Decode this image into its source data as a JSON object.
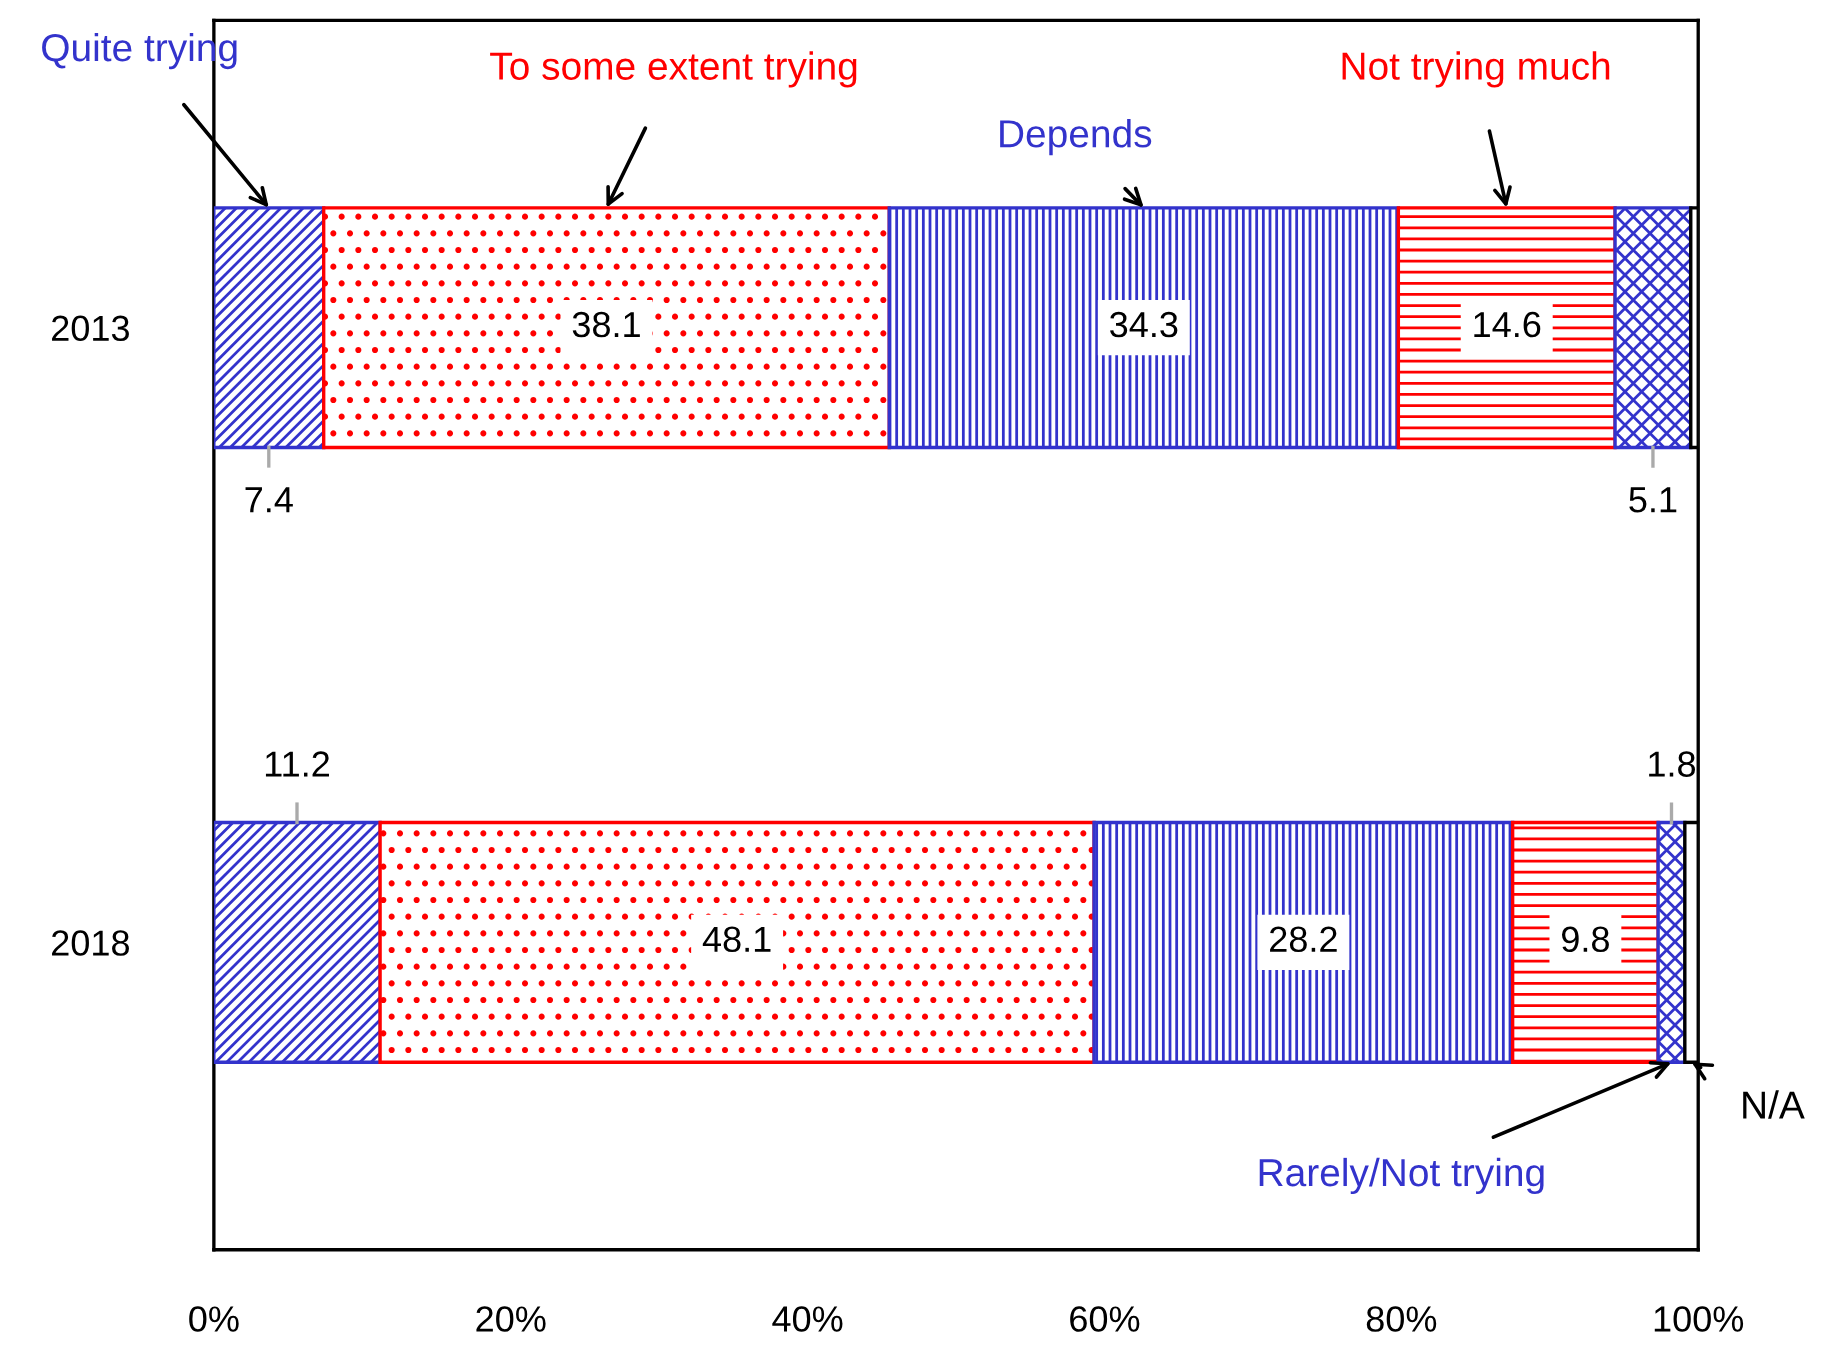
{
  "chart_data": {
    "type": "bar",
    "orientation": "horizontal",
    "stacked": true,
    "categories": [
      "2013",
      "2018"
    ],
    "series": [
      {
        "name": "Quite trying",
        "color": "#3333cc",
        "values": [
          7.4,
          11.2
        ],
        "value_labels": [
          "7.4",
          "11.2"
        ]
      },
      {
        "name": "To some extent trying",
        "color": "#ff0000",
        "values": [
          38.1,
          48.1
        ],
        "value_labels": [
          "38.1",
          "48.1"
        ]
      },
      {
        "name": "Depends",
        "color": "#3333cc",
        "values": [
          34.3,
          28.2
        ],
        "value_labels": [
          "34.3",
          "28.2"
        ]
      },
      {
        "name": "Not trying much",
        "color": "#ff0000",
        "values": [
          14.6,
          9.8
        ],
        "value_labels": [
          "14.6",
          "9.8"
        ]
      },
      {
        "name": "Rarely/Not trying",
        "color": "#3333cc",
        "values": [
          5.1,
          1.8
        ],
        "value_labels": [
          "5.1",
          "1.8"
        ]
      },
      {
        "name": "N/A",
        "color": "#000000",
        "values": [
          0.5,
          0.9
        ],
        "value_labels": [
          null,
          null
        ]
      }
    ],
    "xlim": [
      0,
      100
    ],
    "xticks": [
      {
        "value": 0,
        "label": "0%"
      },
      {
        "value": 20,
        "label": "20%"
      },
      {
        "value": 40,
        "label": "40%"
      },
      {
        "value": 60,
        "label": "60%"
      },
      {
        "value": 80,
        "label": "80%"
      },
      {
        "value": 100,
        "label": "100%"
      }
    ]
  }
}
